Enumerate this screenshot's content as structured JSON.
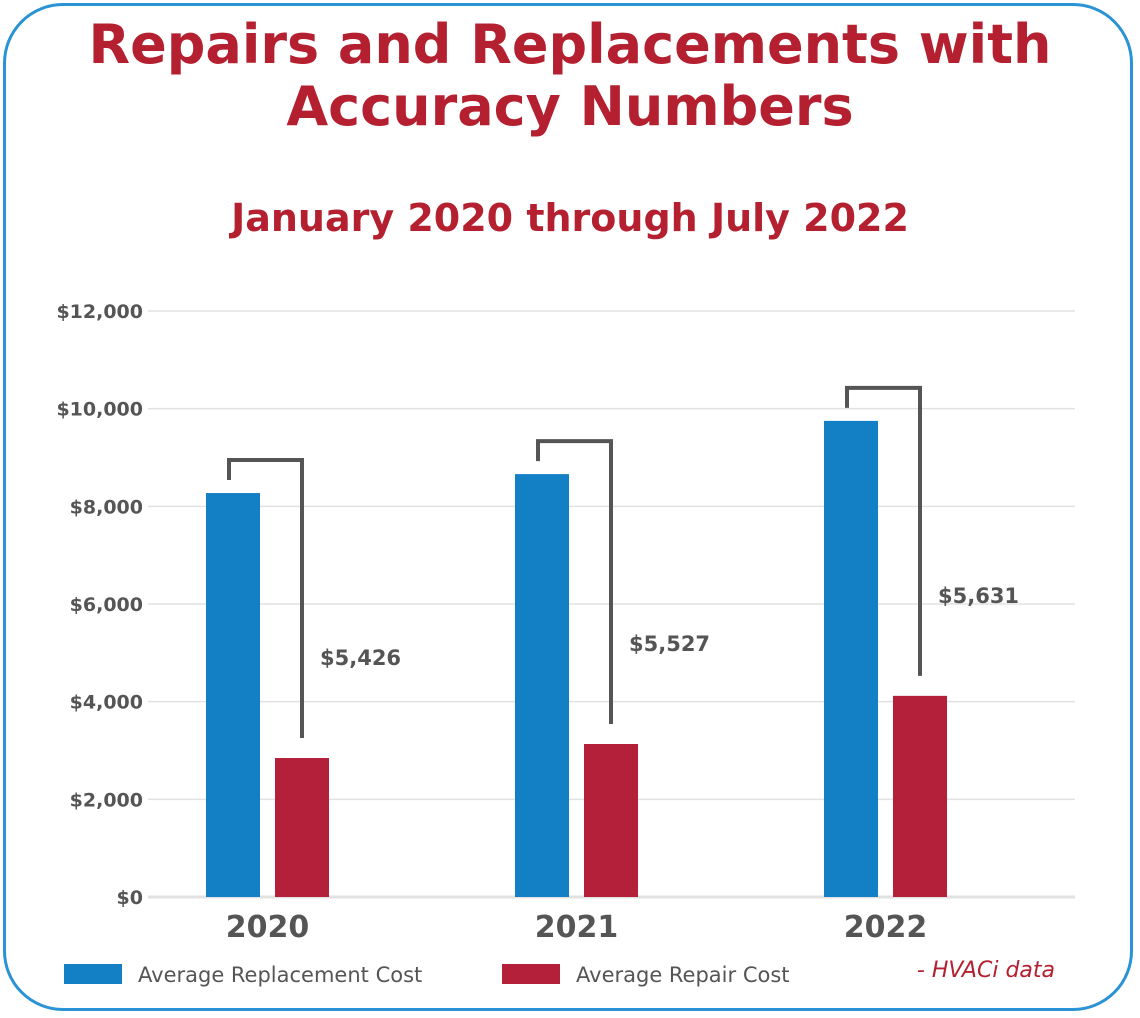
{
  "chart_data": {
    "type": "bar",
    "title": "Repairs and Replacements with Accuracy Numbers",
    "subtitle": "January 2020 through July 2022",
    "categories": [
      "2020",
      "2021",
      "2022"
    ],
    "series": [
      {
        "name": "Average Replacement Cost",
        "values": [
          8272,
          8660,
          9750
        ],
        "color": "#1380c6"
      },
      {
        "name": "Average Repair Cost",
        "values": [
          2846,
          3133,
          4119
        ],
        "color": "#b4203a"
      }
    ],
    "difference_labels": [
      "$5,426",
      "$5,527",
      "$5,631"
    ],
    "yticks": [
      "$0",
      "$2,000",
      "$4,000",
      "$6,000",
      "$8,000",
      "$10,000",
      "$12,000"
    ],
    "ylim": [
      0,
      12000
    ],
    "grid": true,
    "legend_placement": "bottom",
    "source": "- HVACi data",
    "border_color": "#2a93d5",
    "title_color": "#b4202f"
  }
}
